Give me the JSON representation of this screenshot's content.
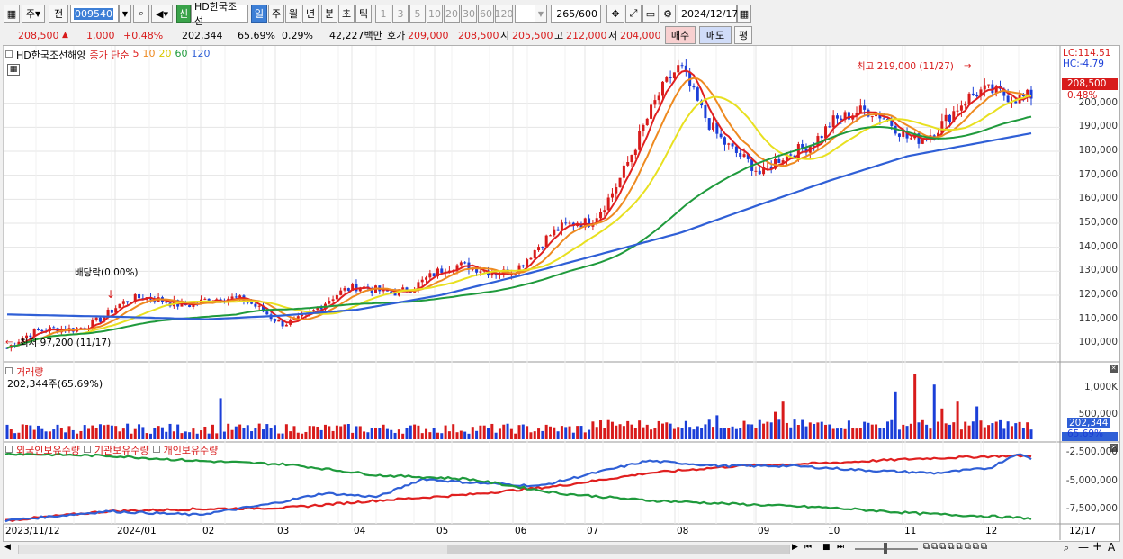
{
  "toolbar": {
    "period_button": "주",
    "prev_button": "전",
    "code": "009540",
    "name": "HD한국조선",
    "new_badge": "신",
    "period_tabs": [
      "일",
      "주",
      "월",
      "년",
      "분",
      "초",
      "틱"
    ],
    "interval_tabs": [
      "1",
      "3",
      "5",
      "10",
      "20",
      "30",
      "60",
      "120"
    ],
    "count": "265",
    "count_total": "/600",
    "date": "2024/12/17"
  },
  "quote": {
    "price": "208,500",
    "change": "1,000",
    "change_pct": "+0.48%",
    "volume": "202,344",
    "volume_ratio": "65.69%",
    "turnover_pct": "0.29%",
    "amount": "42,227백만",
    "bid_label": "호가",
    "bid": "209,000",
    "ask": "208,500",
    "open_label": "시",
    "open": "205,500",
    "high_label": "고",
    "high": "212,000",
    "low_label": "저",
    "low": "204,000",
    "buy_button": "매수",
    "sell_button": "매도",
    "eval_button": "평"
  },
  "price_panel": {
    "legend_name": "HD한국조선해양",
    "legend_ma": "종가 단순",
    "ma_periods": [
      "5",
      "10",
      "20",
      "60",
      "120"
    ],
    "ma_colors": [
      "#e02020",
      "#ee8a20",
      "#e8e020",
      "#1f9a3c",
      "#2f5fd6"
    ],
    "lc": "LC:114.51",
    "hc": "HC:-4.79",
    "current_tag": "208,500",
    "current_pct_tag": "0.48%",
    "high_note": "최고 219,000 (11/27)",
    "low_note": "최저 97,200 (11/17)",
    "dividend_note": "배당락(0.00%)",
    "y_ticks": [
      "200,000",
      "190,000",
      "180,000",
      "170,000",
      "160,000",
      "150,000",
      "140,000",
      "130,000",
      "120,000",
      "110,000",
      "100,000"
    ]
  },
  "volume_panel": {
    "title": "거래량",
    "subtitle": "202,344주(65.69%)",
    "y_ticks": [
      "1,000K",
      "500,000"
    ],
    "current_tag": "202,344",
    "current_pct": "65.69%"
  },
  "holding_panel": {
    "legend": [
      "외국인보유수량",
      "기관보유수량",
      "개인보유수량"
    ],
    "colors": [
      "#e02020",
      "#2f5fd6",
      "#1f9a3c"
    ],
    "y_ticks": [
      "-2,500,000",
      "-5,000,000",
      "-7,500,000"
    ]
  },
  "x_axis": {
    "labels": [
      "2023/11/12",
      "2024/01",
      "02",
      "03",
      "04",
      "05",
      "06",
      "07",
      "08",
      "09",
      "10",
      "11",
      "12"
    ],
    "right_label": "12/17"
  },
  "chart_data": {
    "type": "line",
    "title": "HD한국조선해양",
    "xlabel": "",
    "ylabel": "",
    "ylim": [
      93000,
      222000
    ],
    "x": [
      "2023/11",
      "2024/01",
      "02",
      "03",
      "04",
      "05",
      "06",
      "07",
      "08",
      "09",
      "10",
      "11",
      "12"
    ],
    "series": [
      {
        "name": "종가",
        "values": [
          98000,
          115000,
          120000,
          110000,
          121000,
          128000,
          134000,
          152000,
          213000,
          166000,
          196000,
          188000,
          208500
        ]
      },
      {
        "name": "120",
        "values": [
          112000,
          111000,
          110000,
          111500,
          114000,
          120000,
          128000,
          136000,
          146000,
          158000,
          168000,
          178000,
          187500
        ]
      }
    ],
    "high": {
      "value": 219000,
      "date": "11/27"
    },
    "low": {
      "value": 97200,
      "date": "11/17"
    }
  }
}
